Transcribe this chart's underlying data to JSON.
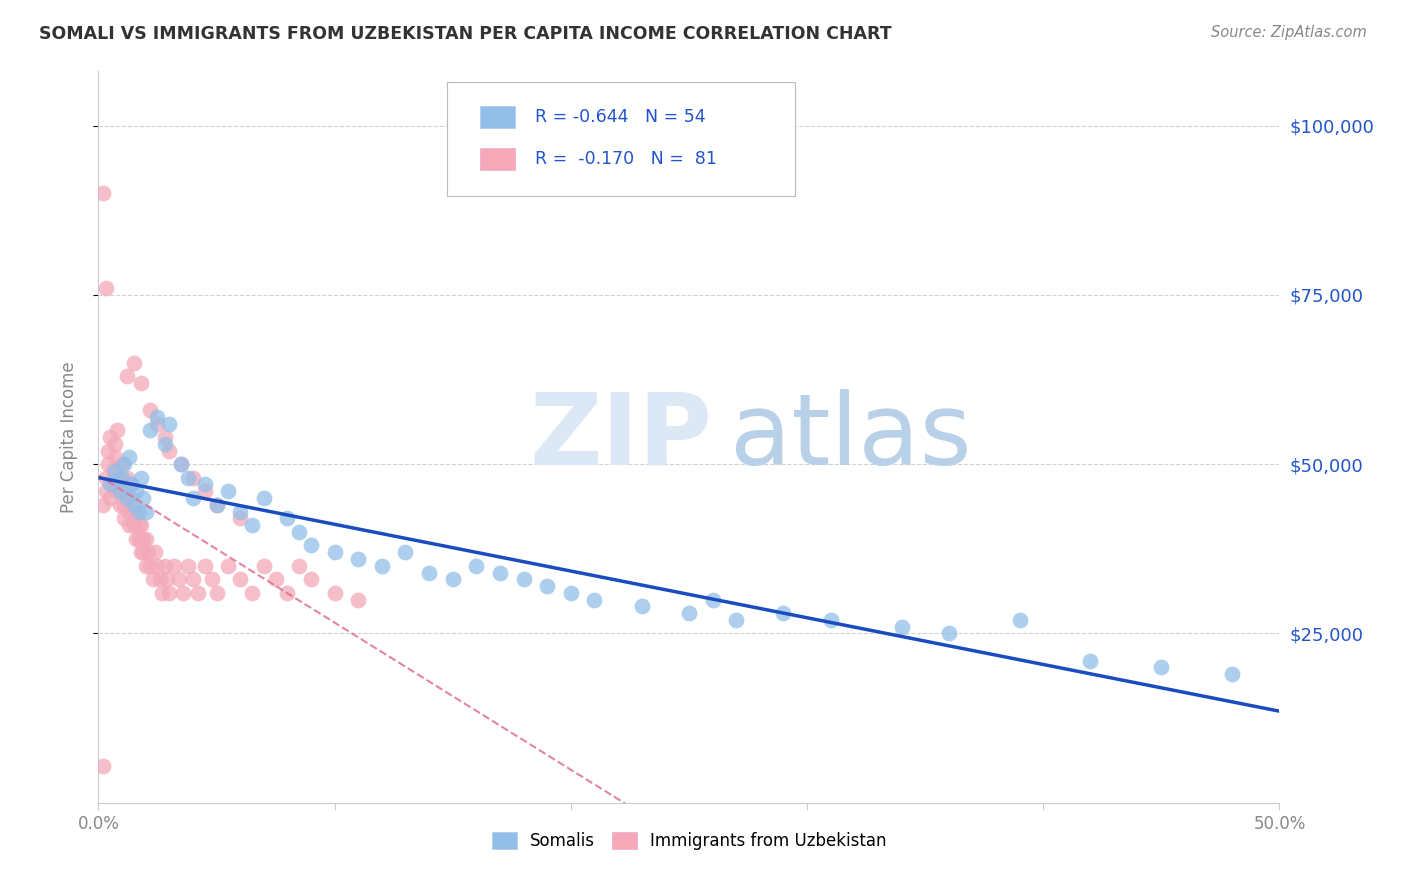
{
  "title": "SOMALI VS IMMIGRANTS FROM UZBEKISTAN PER CAPITA INCOME CORRELATION CHART",
  "source": "Source: ZipAtlas.com",
  "ylabel": "Per Capita Income",
  "ytick_labels": [
    "$25,000",
    "$50,000",
    "$75,000",
    "$100,000"
  ],
  "ytick_values": [
    25000,
    50000,
    75000,
    100000
  ],
  "ylim": [
    0,
    108000
  ],
  "xlim": [
    0.0,
    0.5
  ],
  "blue_color": "#92BFE8",
  "pink_color": "#F4A8B8",
  "trendline_blue": "#1A4CC0",
  "trendline_pink": "#E07090",
  "right_axis_color": "#2255CC",
  "legend_text_color": "#2255CC",
  "grid_color": "#CCCCCC",
  "title_color": "#333333",
  "source_color": "#888888",
  "ylabel_color": "#888888",
  "xtick_color": "#888888",
  "blue_scatter_x": [
    0.005,
    0.007,
    0.009,
    0.01,
    0.011,
    0.012,
    0.013,
    0.014,
    0.015,
    0.016,
    0.017,
    0.018,
    0.019,
    0.02,
    0.022,
    0.025,
    0.028,
    0.03,
    0.035,
    0.038,
    0.04,
    0.045,
    0.05,
    0.055,
    0.06,
    0.065,
    0.07,
    0.08,
    0.085,
    0.09,
    0.1,
    0.11,
    0.12,
    0.13,
    0.14,
    0.15,
    0.16,
    0.17,
    0.18,
    0.19,
    0.2,
    0.21,
    0.23,
    0.25,
    0.26,
    0.27,
    0.29,
    0.31,
    0.34,
    0.36,
    0.39,
    0.42,
    0.45,
    0.48
  ],
  "blue_scatter_y": [
    47000,
    49000,
    46000,
    48000,
    50000,
    45000,
    51000,
    47000,
    44000,
    46000,
    43000,
    48000,
    45000,
    43000,
    55000,
    57000,
    53000,
    56000,
    50000,
    48000,
    45000,
    47000,
    44000,
    46000,
    43000,
    41000,
    45000,
    42000,
    40000,
    38000,
    37000,
    36000,
    35000,
    37000,
    34000,
    33000,
    35000,
    34000,
    33000,
    32000,
    31000,
    30000,
    29000,
    28000,
    30000,
    27000,
    28000,
    27000,
    26000,
    25000,
    27000,
    21000,
    20000,
    19000
  ],
  "pink_scatter_x": [
    0.002,
    0.003,
    0.003,
    0.004,
    0.004,
    0.005,
    0.005,
    0.006,
    0.006,
    0.007,
    0.007,
    0.008,
    0.008,
    0.009,
    0.009,
    0.01,
    0.01,
    0.011,
    0.011,
    0.012,
    0.012,
    0.013,
    0.013,
    0.014,
    0.014,
    0.015,
    0.015,
    0.016,
    0.016,
    0.017,
    0.017,
    0.018,
    0.018,
    0.019,
    0.019,
    0.02,
    0.02,
    0.021,
    0.022,
    0.023,
    0.024,
    0.025,
    0.026,
    0.027,
    0.028,
    0.029,
    0.03,
    0.032,
    0.034,
    0.036,
    0.038,
    0.04,
    0.042,
    0.045,
    0.048,
    0.05,
    0.055,
    0.06,
    0.065,
    0.07,
    0.075,
    0.08,
    0.085,
    0.09,
    0.1,
    0.11,
    0.012,
    0.015,
    0.018,
    0.022,
    0.025,
    0.028,
    0.03,
    0.035,
    0.04,
    0.045,
    0.05,
    0.06,
    0.002,
    0.003,
    0.002
  ],
  "pink_scatter_y": [
    44000,
    46000,
    48000,
    50000,
    52000,
    54000,
    45000,
    47000,
    49000,
    51000,
    53000,
    55000,
    46000,
    48000,
    44000,
    46000,
    50000,
    42000,
    44000,
    46000,
    48000,
    43000,
    41000,
    45000,
    47000,
    43000,
    41000,
    39000,
    43000,
    41000,
    39000,
    37000,
    41000,
    39000,
    37000,
    35000,
    39000,
    37000,
    35000,
    33000,
    37000,
    35000,
    33000,
    31000,
    35000,
    33000,
    31000,
    35000,
    33000,
    31000,
    35000,
    33000,
    31000,
    35000,
    33000,
    31000,
    35000,
    33000,
    31000,
    35000,
    33000,
    31000,
    35000,
    33000,
    31000,
    30000,
    63000,
    65000,
    62000,
    58000,
    56000,
    54000,
    52000,
    50000,
    48000,
    46000,
    44000,
    42000,
    90000,
    76000,
    5500
  ]
}
